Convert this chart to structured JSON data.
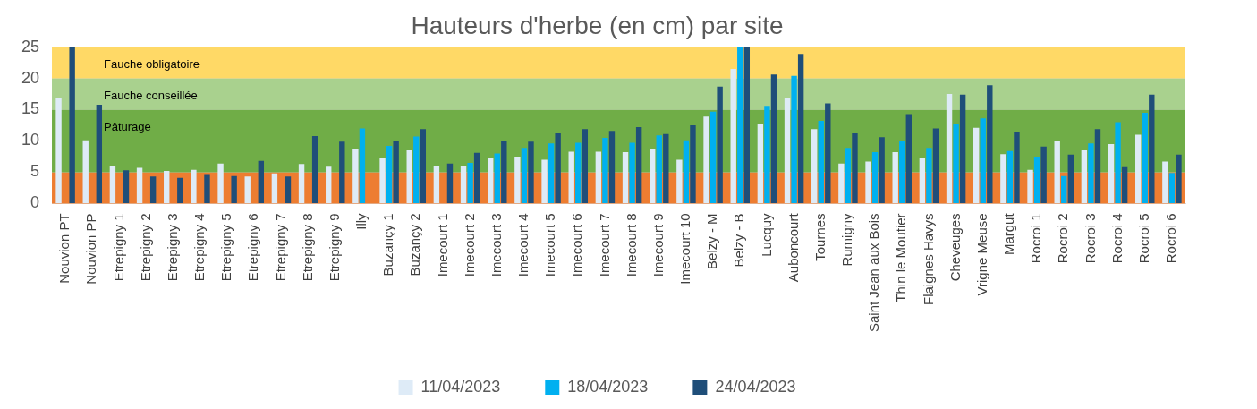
{
  "chart_data": {
    "type": "bar",
    "title": "Hauteurs d'herbe (en cm) par site",
    "categories": [
      "Nouvion PT",
      "Nouvion PP",
      "Etrepigny 1",
      "Etrepigny 2",
      "Etrepigny 3",
      "Etrepigny 4",
      "Etrepigny 5",
      "Etrepigny 6",
      "Etrepigny 7",
      "Etrepigny 8",
      "Etrepigny 9",
      "Illy",
      "Buzançy 1",
      "Buzançy 2",
      "Imecourt 1",
      "Imecourt 2",
      "Imecourt 3",
      "Imecourt 4",
      "Imecourt 5",
      "Imecourt 6",
      "Imecourt 7",
      "Imecourt 8",
      "Imecourt 9",
      "Imecourt 10",
      "Belzy - M",
      "Belzy - B",
      "Lucquy",
      "Auboncourt",
      "Tournes",
      "Rumigny",
      "Saint Jean aux Bois",
      "Thin le Moutier",
      "Flaignes Havys",
      "Cheveuges",
      "Vrigne Meuse",
      "Margut",
      "Rocroi 1",
      "Rocroi 2",
      "Rocroi 3",
      "Rocroi 4",
      "Rocroi 5",
      "Rocroi 6"
    ],
    "series": [
      {
        "name": "11/04/2023",
        "color": "#deebf7",
        "values": [
          16.8,
          10.1,
          6.0,
          5.7,
          5.2,
          5.4,
          6.4,
          4.3,
          4.8,
          6.3,
          5.9,
          8.8,
          7.3,
          8.5,
          6.0,
          6.0,
          7.2,
          7.5,
          7.0,
          8.3,
          8.3,
          8.2,
          8.7,
          7.0,
          13.9,
          21.5,
          12.8,
          16.9,
          11.9,
          6.4,
          6.7,
          8.2,
          7.2,
          17.5,
          12.1,
          7.9,
          5.4,
          10.0,
          8.5,
          9.5,
          11.0,
          6.7
        ]
      },
      {
        "name": "18/04/2023",
        "color": "#00b0f0",
        "values": [
          null,
          null,
          null,
          null,
          null,
          null,
          null,
          null,
          null,
          null,
          null,
          12.0,
          9.2,
          10.7,
          null,
          6.5,
          8.0,
          8.9,
          9.6,
          9.7,
          10.5,
          9.7,
          10.9,
          10.1,
          14.7,
          25,
          15.6,
          20.4,
          13.2,
          8.9,
          8.2,
          10.0,
          8.9,
          12.8,
          13.6,
          8.4,
          7.5,
          4.4,
          9.6,
          13.0,
          14.5,
          4.9
        ]
      },
      {
        "name": "24/04/2023",
        "color": "#1f4e79",
        "values": [
          25,
          15.8,
          5.3,
          4.3,
          4.1,
          4.7,
          4.4,
          6.8,
          4.3,
          10.8,
          9.9,
          null,
          10.0,
          11.9,
          6.4,
          8.1,
          10.0,
          9.9,
          11.2,
          11.9,
          11.6,
          12.2,
          11.1,
          12.5,
          18.7,
          25,
          20.6,
          23.9,
          16.0,
          11.2,
          10.6,
          14.3,
          12.0,
          17.4,
          18.9,
          11.4,
          9.1,
          7.8,
          11.9,
          5.8,
          17.4,
          7.8
        ]
      }
    ],
    "ylim": [
      0,
      25
    ],
    "yticks": [
      0,
      5,
      10,
      15,
      20,
      25
    ],
    "grid": "y",
    "legend": "bottom",
    "bands": [
      {
        "axis": "y",
        "from": 0,
        "to": 5,
        "label": null,
        "color": "#ed7d31"
      },
      {
        "axis": "y",
        "from": 5,
        "to": 15,
        "label": "Pâturage",
        "color": "#70ad47"
      },
      {
        "axis": "y",
        "from": 15,
        "to": 20,
        "label": "Fauche conseillée",
        "color": "#a9d18e"
      },
      {
        "axis": "y",
        "from": 20,
        "to": 25,
        "label": "Fauche obligatoire",
        "color": "#ffd966"
      }
    ]
  }
}
